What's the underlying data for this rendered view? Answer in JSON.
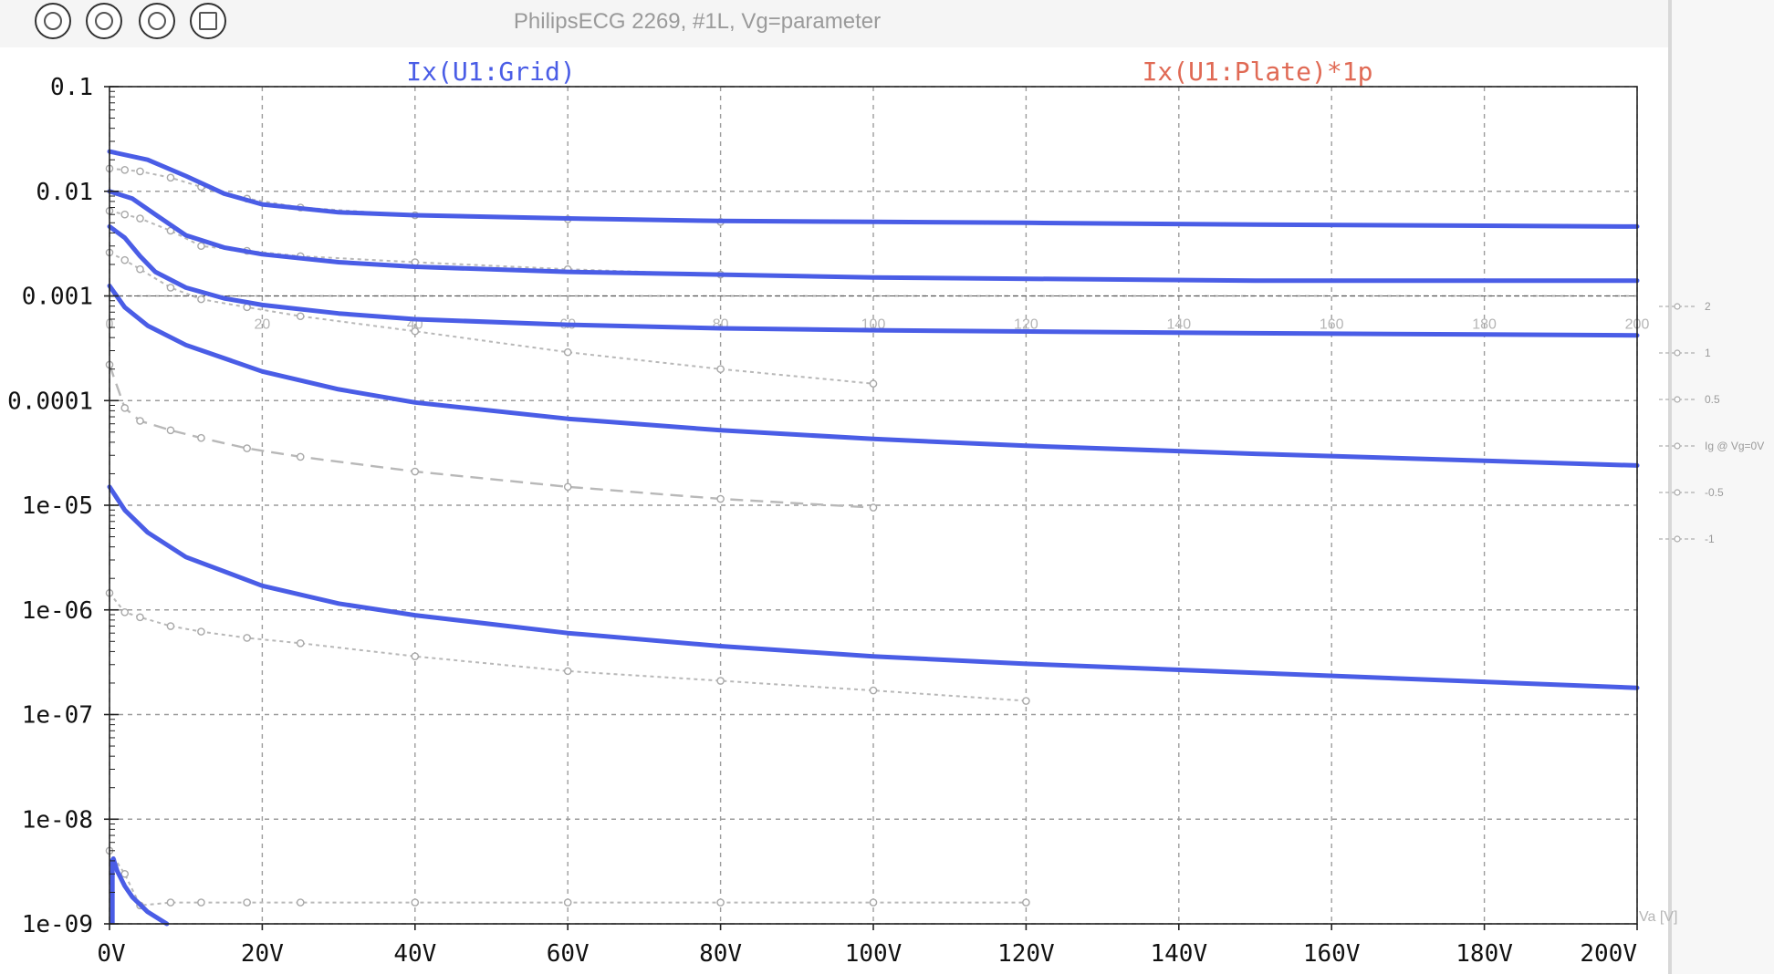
{
  "window": {
    "title": "PhilipsECG 2269, #1L, Vg=parameter"
  },
  "toolbar": {
    "buttons": [
      {
        "name": "zoom-cancel-tool",
        "icon": "zoom-cancel-icon"
      },
      {
        "name": "autorange-tool",
        "icon": "autorange-icon"
      },
      {
        "name": "zoom-back-tool",
        "icon": "zoom-back-icon"
      },
      {
        "name": "grid-tool",
        "icon": "grid-icon"
      }
    ]
  },
  "colors": {
    "trace": "#4a5de6",
    "plate_label": "#e06a55",
    "reference": "#b8b8b8"
  },
  "chart_data": {
    "type": "line",
    "y_scale": "log",
    "xlim": [
      0,
      200
    ],
    "ylim": [
      1e-09,
      0.1
    ],
    "x_ticks": [
      "0V",
      "20V",
      "40V",
      "60V",
      "80V",
      "100V",
      "120V",
      "140V",
      "160V",
      "180V",
      "200V"
    ],
    "y_ticks": [
      "0.1",
      "0.01",
      "0.001",
      "0.0001",
      "1e-05",
      "1e-06",
      "1e-07",
      "1e-08",
      "1e-09"
    ],
    "grid": true,
    "trace_labels": [
      {
        "text": "Ix(U1:Grid)",
        "color": "#4a5de6"
      },
      {
        "text": "Ix(U1:Plate)*1p",
        "color": "#e06a55"
      }
    ],
    "series": [
      {
        "x": [
          0,
          5,
          10,
          15,
          20,
          30,
          40,
          60,
          80,
          100,
          120,
          150,
          200
        ],
        "y": [
          0.024,
          0.02,
          0.014,
          0.0095,
          0.0075,
          0.0063,
          0.0059,
          0.0055,
          0.0052,
          0.0051,
          0.005,
          0.0048,
          0.0046
        ]
      },
      {
        "x": [
          0,
          3,
          6,
          10,
          15,
          20,
          30,
          40,
          60,
          80,
          100,
          150,
          200
        ],
        "y": [
          0.01,
          0.0085,
          0.006,
          0.0038,
          0.0029,
          0.0025,
          0.0021,
          0.0019,
          0.0017,
          0.0016,
          0.0015,
          0.0014,
          0.0014
        ]
      },
      {
        "x": [
          0,
          2,
          4,
          6,
          10,
          15,
          20,
          30,
          40,
          60,
          80,
          100,
          150,
          200
        ],
        "y": [
          0.0046,
          0.0036,
          0.0024,
          0.0017,
          0.0012,
          0.00095,
          0.00082,
          0.00068,
          0.0006,
          0.00053,
          0.00049,
          0.00047,
          0.00044,
          0.00042
        ]
      },
      {
        "x": [
          0,
          2,
          5,
          10,
          20,
          30,
          40,
          60,
          80,
          100,
          120,
          150,
          200
        ],
        "y": [
          0.00125,
          0.00078,
          0.00052,
          0.00034,
          0.00019,
          0.000128,
          9.6e-05,
          6.7e-05,
          5.2e-05,
          4.3e-05,
          3.7e-05,
          3.1e-05,
          2.4e-05
        ]
      },
      {
        "x": [
          0,
          2,
          5,
          10,
          20,
          30,
          40,
          60,
          80,
          100,
          120,
          150,
          200
        ],
        "y": [
          1.5e-05,
          9e-06,
          5.5e-06,
          3.2e-06,
          1.7e-06,
          1.15e-06,
          8.9e-07,
          6e-07,
          4.5e-07,
          3.6e-07,
          3.05e-07,
          2.5e-07,
          1.8e-07
        ]
      },
      {
        "x": [
          0.5,
          1,
          2,
          3,
          5,
          7.5
        ],
        "y": [
          4.2e-09,
          3.2e-09,
          2.3e-09,
          1.8e-09,
          1.3e-09,
          1e-09
        ]
      }
    ],
    "reference_series": [
      {
        "dash": "dotted",
        "x": [
          0,
          2,
          4,
          8,
          12,
          18,
          25,
          40,
          60,
          80
        ],
        "y": [
          0.0165,
          0.016,
          0.0155,
          0.0135,
          0.011,
          0.0085,
          0.007,
          0.0059,
          0.0054,
          0.0051
        ]
      },
      {
        "dash": "dotted",
        "x": [
          0,
          2,
          4,
          8,
          12,
          18,
          25,
          40,
          60,
          80
        ],
        "y": [
          0.0065,
          0.006,
          0.0055,
          0.0042,
          0.003,
          0.0027,
          0.0024,
          0.0021,
          0.0018,
          0.0016
        ]
      },
      {
        "dash": "dotted",
        "x": [
          0,
          2,
          4,
          8,
          12,
          18,
          25,
          40,
          60,
          80,
          100
        ],
        "y": [
          0.0026,
          0.0022,
          0.0018,
          0.0012,
          0.00093,
          0.00078,
          0.00064,
          0.00046,
          0.00029,
          0.0002,
          0.000145
        ]
      },
      {
        "dash": "dashed",
        "x": [
          0,
          2,
          4,
          8,
          12,
          18,
          25,
          40,
          60,
          80,
          100
        ],
        "y": [
          0.00022,
          8.5e-05,
          6.4e-05,
          5.2e-05,
          4.4e-05,
          3.5e-05,
          2.9e-05,
          2.1e-05,
          1.5e-05,
          1.15e-05,
          9.5e-06
        ]
      },
      {
        "dash": "dotted",
        "x": [
          0,
          2,
          4,
          8,
          12,
          18,
          25,
          40,
          60,
          80,
          100,
          120
        ],
        "y": [
          1.45e-06,
          9.5e-07,
          8.5e-07,
          7e-07,
          6.2e-07,
          5.4e-07,
          4.8e-07,
          3.6e-07,
          2.6e-07,
          2.1e-07,
          1.7e-07,
          1.35e-07
        ]
      },
      {
        "dash": "dotted",
        "x": [
          0,
          2,
          4,
          8,
          12,
          18,
          25,
          40,
          60,
          80,
          100,
          120
        ],
        "y": [
          5e-09,
          3e-09,
          1.5e-09,
          1.6e-09,
          1.6e-09,
          1.6e-09,
          1.6e-09,
          1.6e-09,
          1.6e-09,
          1.6e-09,
          1.6e-09,
          1.6e-09
        ]
      }
    ],
    "ghost_x_ticks": [
      "0",
      "20",
      "40",
      "60",
      "80",
      "100",
      "120",
      "140",
      "160",
      "180",
      "200"
    ],
    "ghost_axis_label": "Va [V]",
    "reference_legend": [
      "2",
      "1",
      "0.5",
      "Ig @ Vg=0V",
      "-0.5",
      "-1"
    ]
  }
}
